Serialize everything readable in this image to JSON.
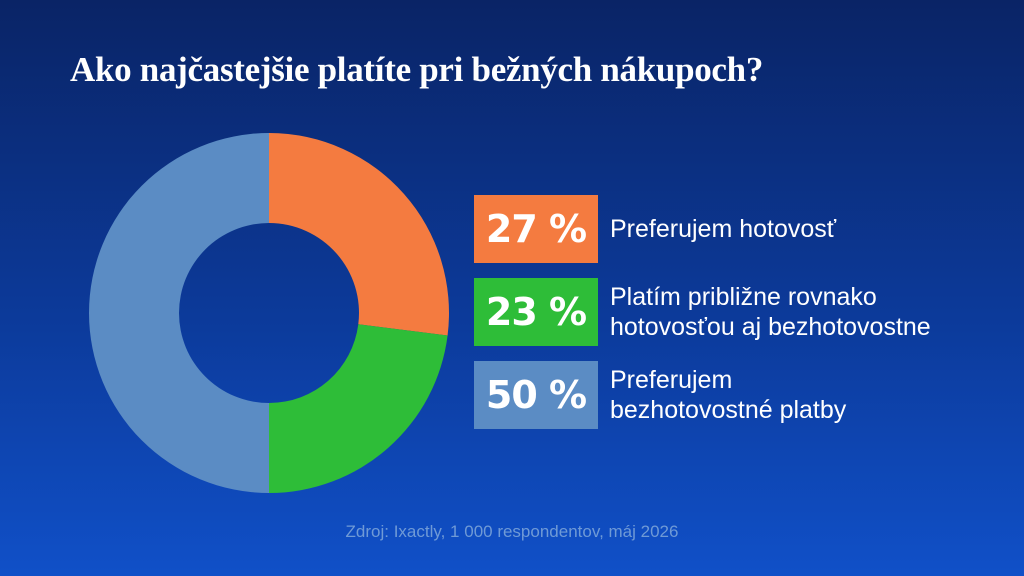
{
  "title": "Ako najčastejšie platíte pri bežných nákupoch?",
  "source": "Zdroj: Ixactly, 1 000 respondentov, máj 2026",
  "chart_data": {
    "type": "pie",
    "title": "Ako najčastejšie platíte pri bežných nákupoch?",
    "donut": true,
    "unit": "%",
    "slices": [
      {
        "value": 27,
        "value_label": "27 %",
        "label_lines": [
          "Preferujem hotovosť"
        ],
        "color": "#f47b40"
      },
      {
        "value": 23,
        "value_label": "23 %",
        "label_lines": [
          "Platím približne rovnako",
          "hotovosťou aj bezhotovostne"
        ],
        "color": "#2ebd38"
      },
      {
        "value": 50,
        "value_label": "50 %",
        "label_lines": [
          "Preferujem",
          "bezhotovostné platby"
        ],
        "color": "#5b8cc4"
      }
    ],
    "legend_position": "right"
  }
}
